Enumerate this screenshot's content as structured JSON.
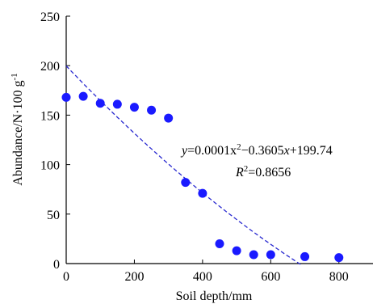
{
  "chart_data": {
    "type": "scatter",
    "xlabel": "Soil depth/mm",
    "ylabel_main": "Abundance/N·100 g",
    "ylabel_sup": "-1",
    "xlim": [
      0,
      900
    ],
    "ylim": [
      0,
      250
    ],
    "xticks": [
      0,
      200,
      400,
      600,
      800
    ],
    "yticks": [
      0,
      50,
      100,
      150,
      200,
      250
    ],
    "grid": false,
    "points": [
      {
        "x": 0,
        "y": 168
      },
      {
        "x": 50,
        "y": 169
      },
      {
        "x": 100,
        "y": 162
      },
      {
        "x": 150,
        "y": 161
      },
      {
        "x": 200,
        "y": 158
      },
      {
        "x": 250,
        "y": 155
      },
      {
        "x": 300,
        "y": 147
      },
      {
        "x": 350,
        "y": 82
      },
      {
        "x": 400,
        "y": 71
      },
      {
        "x": 450,
        "y": 20
      },
      {
        "x": 500,
        "y": 13
      },
      {
        "x": 550,
        "y": 9
      },
      {
        "x": 600,
        "y": 9
      },
      {
        "x": 700,
        "y": 7
      },
      {
        "x": 800,
        "y": 6
      }
    ],
    "trendline": {
      "type": "quadratic",
      "coefficients": {
        "a": 0.0001,
        "b": -0.3605,
        "c": 199.74
      },
      "style": "dashed",
      "x_range": [
        0,
        690
      ]
    },
    "equation": {
      "y": "y",
      "eq1": "=0.0001x",
      "sup": "2",
      "eq2": "−0.3605",
      "x": "x",
      "eq3": "+199.74"
    },
    "r2": {
      "r": "R",
      "sup": "2",
      "value": "=0.8656"
    },
    "colors": {
      "points": "#1a1aff",
      "trendline": "#2a2ad0",
      "axis": "#000000"
    }
  }
}
